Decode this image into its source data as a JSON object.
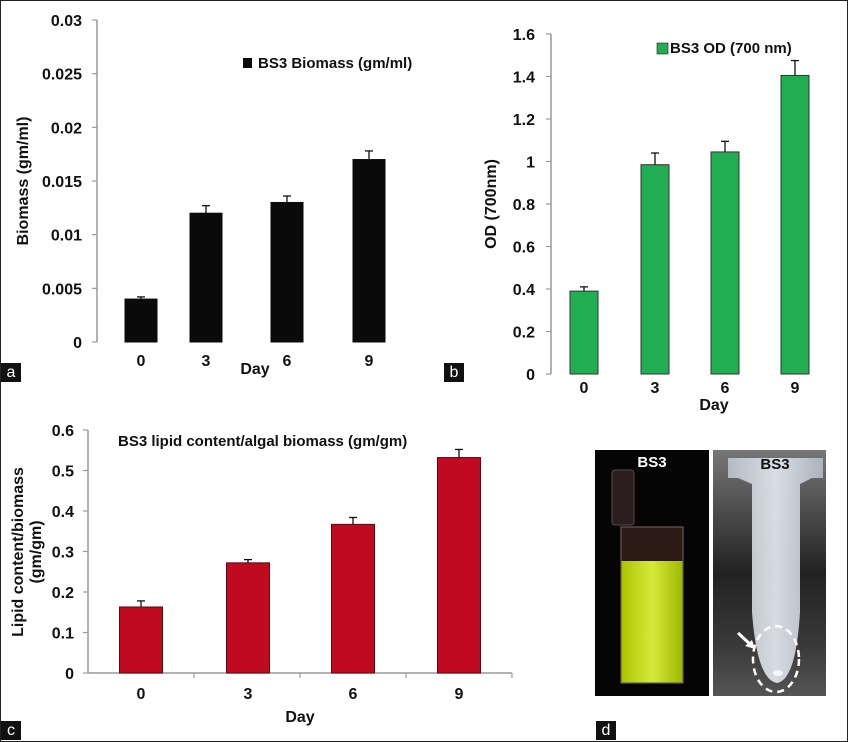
{
  "panels": {
    "a": "a",
    "b": "b",
    "c": "c",
    "d": "d"
  },
  "chart_data": [
    {
      "id": "a",
      "type": "bar",
      "title": "",
      "legend": "BS3 Biomass (gm/ml)",
      "legend_position": "top-right",
      "categories": [
        "0",
        "3",
        "6",
        "9"
      ],
      "values": [
        0.004,
        0.012,
        0.013,
        0.017
      ],
      "errors": [
        0.0002,
        0.0007,
        0.0006,
        0.0008
      ],
      "xlabel": "Day",
      "ylabel": "Biomass (gm/ml)",
      "ylim": [
        0,
        0.03
      ],
      "yticks": [
        "0",
        "0.005",
        "0.01",
        "0.015",
        "0.02",
        "0.025",
        "0.03"
      ],
      "color": "#0a0a0a"
    },
    {
      "id": "b",
      "type": "bar",
      "title": "",
      "legend": "BS3 OD (700 nm)",
      "legend_position": "top-right",
      "categories": [
        "0",
        "3",
        "6",
        "9"
      ],
      "values": [
        0.39,
        0.985,
        1.045,
        1.405
      ],
      "errors": [
        0.02,
        0.055,
        0.05,
        0.07
      ],
      "xlabel": "Day",
      "ylabel": "OD (700nm)",
      "ylim": [
        0,
        1.6
      ],
      "yticks": [
        "0",
        "0.2",
        "0.4",
        "0.6",
        "0.8",
        "1",
        "1.2",
        "1.4",
        "1.6"
      ],
      "color": "#21ad52"
    },
    {
      "id": "c",
      "type": "bar",
      "title": "BS3 lipid content/algal biomass (gm/gm)",
      "legend": "",
      "categories": [
        "0",
        "3",
        "6",
        "9"
      ],
      "values": [
        0.163,
        0.272,
        0.367,
        0.532
      ],
      "errors": [
        0.015,
        0.008,
        0.017,
        0.02
      ],
      "xlabel": "Day",
      "ylabel_line1": "Lipid content/biomass",
      "ylabel_line2": "(gm/gm)",
      "ylim": [
        0,
        0.6
      ],
      "yticks": [
        "0",
        "0.1",
        "0.2",
        "0.3",
        "0.4",
        "0.5",
        "0.6"
      ],
      "color": "#c00a20"
    }
  ],
  "photos": {
    "vial_label": "BS3",
    "tube_label": "BS3"
  }
}
